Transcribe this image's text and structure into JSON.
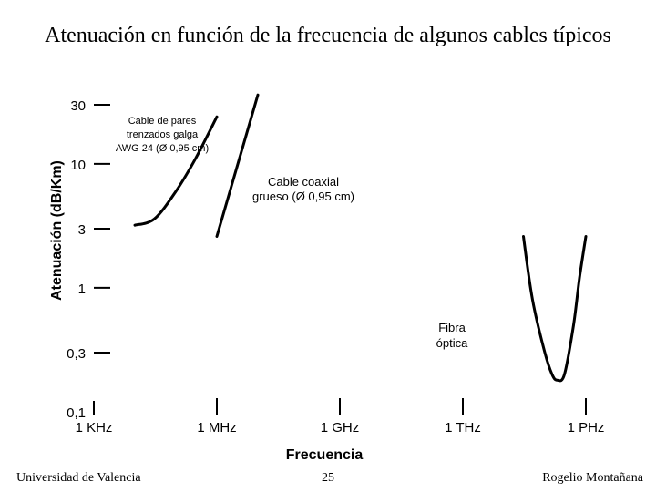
{
  "chart_data": {
    "type": "line",
    "title": "Atenuación en función de la frecuencia de algunos cables típicos",
    "xlabel": "Frecuencia",
    "ylabel": "Atenuación (dB/Km)",
    "x_ticks": [
      "1 KHz",
      "1 MHz",
      "1 GHz",
      "1 THz",
      "1 PHz"
    ],
    "y_ticks": [
      "30",
      "10",
      "3",
      "1",
      "0,3",
      "0,1"
    ],
    "x_scale": "log",
    "y_scale": "log",
    "series": [
      {
        "label_lines": [
          "Cable de pares",
          "trenzados galga",
          "AWG 24 (Ø 0,95 cm)"
        ],
        "x": [
          10000,
          30000,
          100000,
          300000,
          1000000
        ],
        "y": [
          3.2,
          3.6,
          6,
          11,
          24
        ]
      },
      {
        "label_lines": [
          "Cable coaxial",
          "grueso (Ø 0,95 cm)"
        ],
        "x": [
          1000000,
          10000000
        ],
        "y": [
          2.6,
          36
        ]
      },
      {
        "label_lines": [
          "Fibra",
          "óptica"
        ],
        "x": [
          30000000000000.0,
          50000000000000.0,
          100000000000000.0,
          150000000000000.0,
          200000000000000.0,
          300000000000000.0,
          500000000000000.0,
          700000000000000.0,
          1000000000000000.0
        ],
        "y": [
          2.6,
          0.8,
          0.3,
          0.2,
          0.18,
          0.2,
          0.5,
          1.2,
          2.6
        ]
      }
    ]
  },
  "footer": {
    "left": "Universidad de Valencia",
    "center": "25",
    "right": "Rogelio Montañana"
  }
}
